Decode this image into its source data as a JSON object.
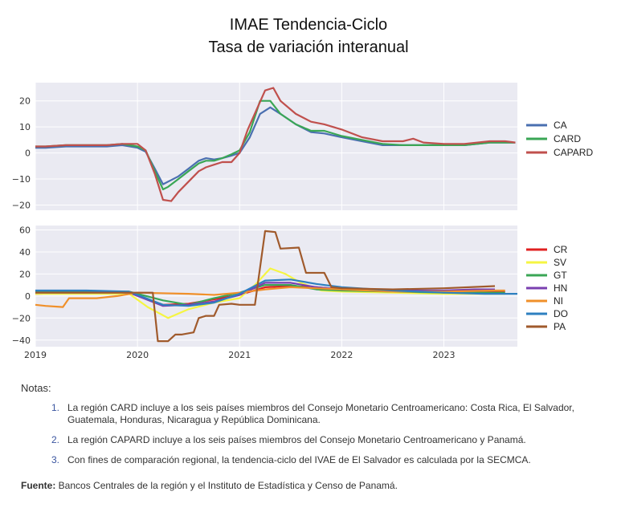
{
  "title_line1": "IMAE Tendencia-Ciclo",
  "title_line2": "Tasa de variación interanual",
  "chart_data": [
    {
      "type": "line",
      "ylim": [
        -22,
        27
      ],
      "yticks": [
        -20,
        -10,
        0,
        10,
        20
      ],
      "xlim": [
        2019.0,
        2023.72
      ],
      "grid": true,
      "legend_position": "right",
      "series": [
        {
          "name": "CA",
          "color": "#4a6fb0",
          "x": [
            2019.0,
            2019.1,
            2019.3,
            2019.5,
            2019.7,
            2019.85,
            2020.0,
            2020.08,
            2020.17,
            2020.25,
            2020.3,
            2020.4,
            2020.5,
            2020.6,
            2020.67,
            2020.75,
            2020.83,
            2020.92,
            2021.0,
            2021.1,
            2021.2,
            2021.3,
            2021.4,
            2021.55,
            2021.7,
            2021.83,
            2022.0,
            2022.2,
            2022.4,
            2022.6,
            2022.8,
            2023.0,
            2023.2,
            2023.45,
            2023.6,
            2023.7
          ],
          "y": [
            2.0,
            2.0,
            2.5,
            2.5,
            2.5,
            3.0,
            2.0,
            0.5,
            -6.0,
            -12.0,
            -11.0,
            -9.0,
            -6.0,
            -3.0,
            -2.0,
            -2.5,
            -2.0,
            -1.0,
            0.0,
            6.0,
            15.0,
            17.5,
            15.0,
            11.0,
            8.0,
            7.5,
            6.0,
            4.5,
            3.0,
            3.0,
            3.0,
            3.0,
            3.0,
            4.0,
            4.0,
            4.0
          ]
        },
        {
          "name": "CARD",
          "color": "#3aa655",
          "x": [
            2019.0,
            2019.1,
            2019.3,
            2019.5,
            2019.7,
            2019.85,
            2020.0,
            2020.08,
            2020.17,
            2020.25,
            2020.3,
            2020.4,
            2020.5,
            2020.6,
            2020.67,
            2020.75,
            2020.83,
            2020.92,
            2021.0,
            2021.1,
            2021.2,
            2021.3,
            2021.4,
            2021.55,
            2021.7,
            2021.83,
            2022.0,
            2022.2,
            2022.4,
            2022.6,
            2022.8,
            2023.0,
            2023.2,
            2023.45,
            2023.6,
            2023.7
          ],
          "y": [
            2.5,
            2.5,
            3.0,
            3.0,
            3.0,
            3.5,
            2.5,
            1.0,
            -7.0,
            -14.0,
            -13.0,
            -10.0,
            -7.0,
            -4.0,
            -3.0,
            -3.0,
            -2.0,
            -0.5,
            1.0,
            8.0,
            20.0,
            20.0,
            15.0,
            11.0,
            8.5,
            8.5,
            6.5,
            5.0,
            3.5,
            3.0,
            3.0,
            3.0,
            3.0,
            4.0,
            4.0,
            4.0
          ]
        },
        {
          "name": "CAPARD",
          "color": "#c0504d",
          "x": [
            2019.0,
            2019.1,
            2019.3,
            2019.5,
            2019.7,
            2019.85,
            2020.0,
            2020.08,
            2020.17,
            2020.25,
            2020.33,
            2020.4,
            2020.5,
            2020.6,
            2020.67,
            2020.75,
            2020.83,
            2020.92,
            2021.0,
            2021.08,
            2021.25,
            2021.33,
            2021.4,
            2021.55,
            2021.7,
            2021.83,
            2022.0,
            2022.2,
            2022.4,
            2022.6,
            2022.7,
            2022.8,
            2023.0,
            2023.2,
            2023.45,
            2023.6,
            2023.7
          ],
          "y": [
            2.5,
            2.5,
            3.0,
            3.0,
            3.0,
            3.5,
            3.5,
            1.0,
            -8.0,
            -18.0,
            -18.5,
            -15.0,
            -11.0,
            -7.0,
            -5.5,
            -4.5,
            -3.5,
            -3.5,
            0.0,
            9.0,
            24.0,
            25.0,
            20.0,
            15.0,
            12.0,
            11.0,
            9.0,
            6.0,
            4.5,
            4.5,
            5.5,
            4.0,
            3.5,
            3.5,
            4.5,
            4.5,
            4.0
          ]
        }
      ]
    },
    {
      "type": "line",
      "ylim": [
        -46,
        64
      ],
      "yticks": [
        -40,
        -20,
        0,
        20,
        40,
        60
      ],
      "xlim": [
        2019.0,
        2023.72
      ],
      "xticks": [
        "2019",
        "2020",
        "2021",
        "2022",
        "2023"
      ],
      "grid": true,
      "legend_position": "right",
      "series": [
        {
          "name": "CR",
          "color": "#e02020",
          "x": [
            2019.0,
            2019.5,
            2019.92,
            2020.25,
            2020.5,
            2020.75,
            2021.0,
            2021.25,
            2021.5,
            2021.75,
            2022.0,
            2022.5,
            2023.0,
            2023.3,
            2023.6
          ],
          "y": [
            2,
            3,
            3,
            -8,
            -7,
            -3,
            1,
            8,
            9,
            8,
            6,
            4,
            3,
            3,
            4
          ]
        },
        {
          "name": "SV",
          "color": "#f5f542",
          "x": [
            2019.0,
            2019.5,
            2019.92,
            2020.1,
            2020.3,
            2020.5,
            2020.75,
            2021.0,
            2021.15,
            2021.3,
            2021.45,
            2021.6,
            2021.8,
            2022.0,
            2022.5,
            2023.0,
            2023.6
          ],
          "y": [
            2,
            2,
            2,
            -10,
            -20,
            -12,
            -6,
            -2,
            10,
            25,
            20,
            12,
            5,
            4,
            3,
            2,
            2
          ]
        },
        {
          "name": "GT",
          "color": "#3aa655",
          "x": [
            2019.0,
            2019.5,
            2019.92,
            2020.25,
            2020.5,
            2020.75,
            2021.0,
            2021.25,
            2021.5,
            2021.75,
            2022.0,
            2022.5,
            2023.0,
            2023.6
          ],
          "y": [
            4,
            4,
            4,
            -4,
            -8,
            -2,
            3,
            10,
            10,
            6,
            5,
            4,
            3,
            3
          ]
        },
        {
          "name": "HN",
          "color": "#7a3fb0",
          "x": [
            2019.0,
            2019.5,
            2019.92,
            2020.25,
            2020.5,
            2020.75,
            2021.0,
            2021.25,
            2021.5,
            2021.75,
            2022.0,
            2022.5,
            2023.0,
            2023.3,
            2023.5
          ],
          "y": [
            3,
            3,
            3,
            -9,
            -8,
            -5,
            1,
            12,
            12,
            8,
            6,
            5,
            5,
            6,
            6
          ]
        },
        {
          "name": "NI",
          "color": "#f0902a",
          "x": [
            2019.0,
            2019.1,
            2019.27,
            2019.33,
            2019.6,
            2019.8,
            2020.0,
            2020.5,
            2020.75,
            2021.0,
            2021.25,
            2021.5,
            2021.75,
            2022.0,
            2022.5,
            2023.0,
            2023.5,
            2023.6
          ],
          "y": [
            -8,
            -9,
            -10,
            -2,
            -2,
            0,
            3,
            2,
            1,
            3,
            6,
            8,
            7,
            6,
            4,
            4,
            5,
            5
          ]
        },
        {
          "name": "DO",
          "color": "#2e80c0",
          "x": [
            2019.0,
            2019.5,
            2019.92,
            2020.25,
            2020.5,
            2020.75,
            2021.0,
            2021.25,
            2021.5,
            2021.75,
            2022.0,
            2022.5,
            2023.0,
            2023.4,
            2023.72
          ],
          "y": [
            5,
            5,
            4,
            -8,
            -9,
            -6,
            2,
            14,
            15,
            11,
            8,
            5,
            3,
            2,
            2
          ]
        },
        {
          "name": "PA",
          "color": "#a05a2c",
          "x": [
            2019.0,
            2019.92,
            2020.15,
            2020.2,
            2020.3,
            2020.37,
            2020.43,
            2020.55,
            2020.6,
            2020.67,
            2020.75,
            2020.8,
            2020.92,
            2021.0,
            2021.15,
            2021.25,
            2021.35,
            2021.4,
            2021.58,
            2021.65,
            2021.83,
            2021.9,
            2022.0,
            2022.5,
            2023.0,
            2023.5
          ],
          "y": [
            3,
            3,
            3,
            -41,
            -41,
            -35,
            -35,
            -33,
            -20,
            -18,
            -18,
            -8,
            -7,
            -8,
            -8,
            59,
            58,
            43,
            44,
            21,
            21,
            8,
            7,
            6,
            7,
            9
          ]
        }
      ]
    }
  ],
  "notes_title": "Notas:",
  "notes": [
    {
      "num": "1.",
      "text": "La región CARD incluye a los seis países miembros del Consejo Monetario Centroamericano: Costa Rica, El Salvador, Guatemala, Honduras, Nicaragua y República Dominicana."
    },
    {
      "num": "2.",
      "text": "La región CAPARD incluye a los seis países miembros del Consejo Monetario Centroamericano y Panamá."
    },
    {
      "num": "3.",
      "text": "Con fines de comparación regional, la tendencia-ciclo del IVAE de El Salvador es calculada por la SECMCA."
    }
  ],
  "source_label": "Fuente:",
  "source_text": " Bancos Centrales de la región y el Instituto de Estadística y Censo de Panamá."
}
